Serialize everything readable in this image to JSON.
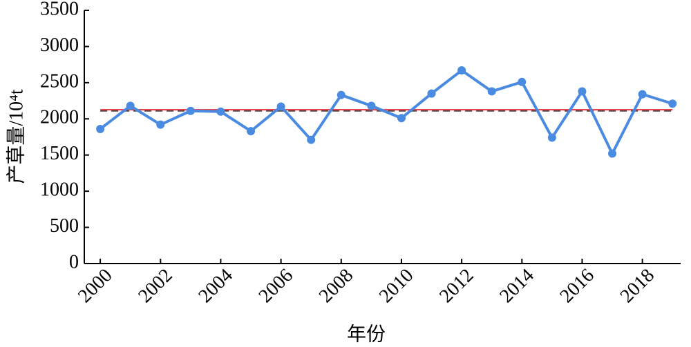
{
  "chart_data": {
    "type": "line",
    "x_label": "年份",
    "y_label": "产草量/10⁴t",
    "x": [
      2000,
      2001,
      2002,
      2003,
      2004,
      2005,
      2006,
      2007,
      2008,
      2009,
      2010,
      2011,
      2012,
      2013,
      2014,
      2015,
      2016,
      2017,
      2018,
      2019
    ],
    "series": [
      {
        "color": "#4a8be2",
        "values": [
          1860,
          2180,
          1920,
          2110,
          2100,
          1830,
          2170,
          1710,
          2330,
          2180,
          2010,
          2350,
          2670,
          2380,
          2510,
          1740,
          2380,
          1520,
          2340,
          2210
        ]
      }
    ],
    "hlines": [
      {
        "value": 2110,
        "color": "#444444",
        "dashed": true
      },
      {
        "value": 2125,
        "color": "#e0323a",
        "dashed": false
      }
    ],
    "xlim": [
      1999.47,
      2019.27
    ],
    "xticks": [
      2000,
      2002,
      2004,
      2006,
      2008,
      2010,
      2012,
      2014,
      2016,
      2018
    ],
    "ylim": [
      0,
      3500
    ],
    "yticks": [
      0,
      500,
      1000,
      1500,
      2000,
      2500,
      3000,
      3500
    ]
  }
}
